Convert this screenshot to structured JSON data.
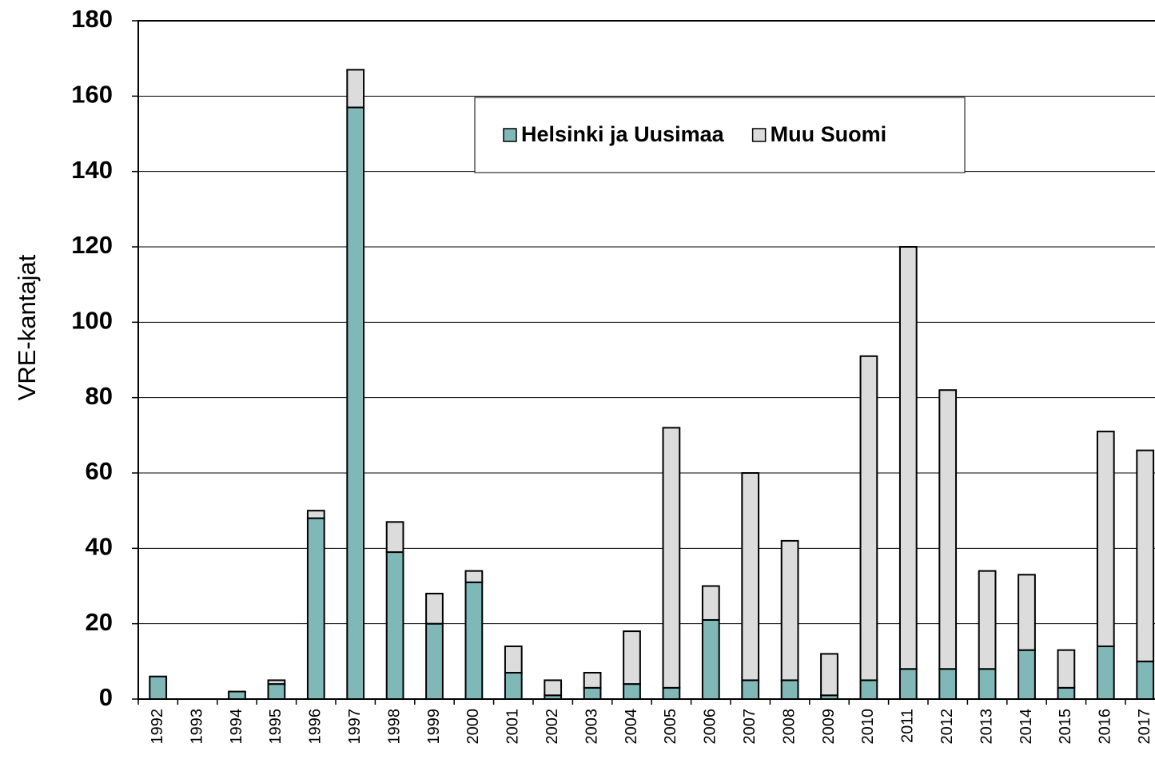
{
  "chart_data": {
    "type": "stacked-bar",
    "y_label": "VRE-kantajat",
    "categories": [
      "1992",
      "1993",
      "1994",
      "1995",
      "1996",
      "1997",
      "1998",
      "1999",
      "2000",
      "2001",
      "2002",
      "2003",
      "2004",
      "2005",
      "2006",
      "2007",
      "2008",
      "2009",
      "2010",
      "2011",
      "2012",
      "2013",
      "2014",
      "2015",
      "2016",
      "2017"
    ],
    "series": [
      {
        "name": "Helsinki ja Uusimaa",
        "color": "#80b8b8",
        "values": [
          6,
          0,
          2,
          4,
          48,
          157,
          39,
          20,
          31,
          7,
          1,
          3,
          4,
          3,
          21,
          5,
          5,
          1,
          5,
          8,
          8,
          8,
          13,
          3,
          14,
          10
        ]
      },
      {
        "name": "Muu Suomi",
        "color": "#dcdcdc",
        "values": [
          0,
          0,
          0,
          1,
          2,
          10,
          8,
          8,
          3,
          7,
          4,
          4,
          14,
          69,
          9,
          55,
          37,
          11,
          86,
          112,
          74,
          26,
          20,
          10,
          57,
          56
        ]
      }
    ],
    "ylim": [
      0,
      180
    ],
    "yticks": [
      0,
      20,
      40,
      60,
      80,
      100,
      120,
      140,
      160,
      180
    ],
    "grid": true,
    "legend": "top-center"
  }
}
